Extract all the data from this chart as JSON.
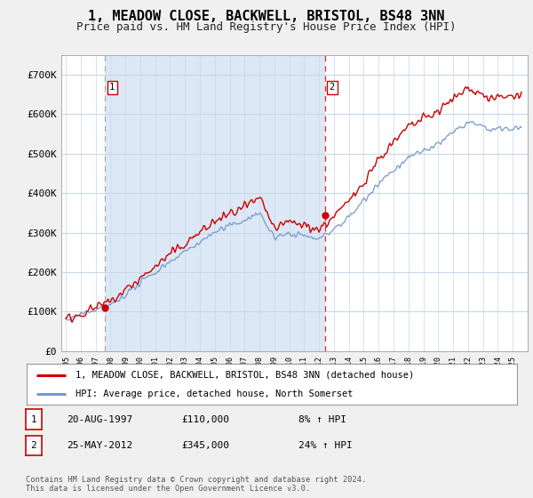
{
  "title": "1, MEADOW CLOSE, BACKWELL, BRISTOL, BS48 3NN",
  "subtitle": "Price paid vs. HM Land Registry's House Price Index (HPI)",
  "ylim": [
    0,
    750000
  ],
  "yticks": [
    0,
    100000,
    200000,
    300000,
    400000,
    500000,
    600000,
    700000
  ],
  "ytick_labels": [
    "£0",
    "£100K",
    "£200K",
    "£300K",
    "£400K",
    "£500K",
    "£600K",
    "£700K"
  ],
  "sale1_date": 1997.63,
  "sale1_price": 110000,
  "sale1_label": "1",
  "sale2_date": 2012.39,
  "sale2_price": 345000,
  "sale2_label": "2",
  "legend_line1": "1, MEADOW CLOSE, BACKWELL, BRISTOL, BS48 3NN (detached house)",
  "legend_line2": "HPI: Average price, detached house, North Somerset",
  "table_rows": [
    [
      "1",
      "20-AUG-1997",
      "£110,000",
      "8% ↑ HPI"
    ],
    [
      "2",
      "25-MAY-2012",
      "£345,000",
      "24% ↑ HPI"
    ]
  ],
  "footer": "Contains HM Land Registry data © Crown copyright and database right 2024.\nThis data is licensed under the Open Government Licence v3.0.",
  "house_color": "#cc0000",
  "hpi_color": "#7799cc",
  "shade_color": "#dce8f5",
  "background_color": "#f0f0f0",
  "plot_bg_color": "#ffffff",
  "sale1_vline_color": "#aaaaaa",
  "sale2_vline_color": "#ee2222",
  "title_fontsize": 11,
  "subtitle_fontsize": 9,
  "axis_fontsize": 8
}
